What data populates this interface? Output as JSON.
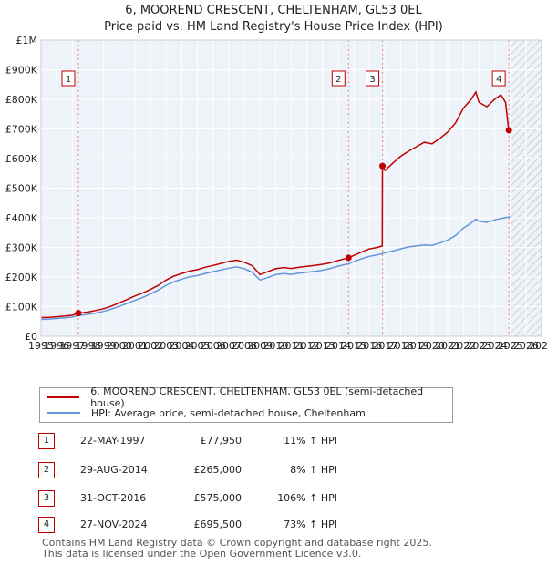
{
  "chart_data": {
    "type": "line",
    "title": "6, MOOREND CRESCENT, CHELTENHAM, GL53 0EL",
    "subtitle": "Price paid vs. HM Land Registry's House Price Index (HPI)",
    "xlim": [
      1995,
      2027
    ],
    "ylim": [
      0,
      1000000
    ],
    "x_ticks": [
      "1995",
      "1996",
      "1997",
      "1998",
      "1999",
      "2000",
      "2001",
      "2002",
      "2003",
      "2004",
      "2005",
      "2006",
      "2007",
      "2008",
      "2009",
      "2010",
      "2011",
      "2012",
      "2013",
      "2014",
      "2015",
      "2016",
      "2017",
      "2018",
      "2019",
      "2020",
      "2021",
      "2022",
      "2023",
      "2024",
      "2025",
      "2026",
      "2027"
    ],
    "y_ticks": [
      {
        "value": 0,
        "label": "£0"
      },
      {
        "value": 100000,
        "label": "£100K"
      },
      {
        "value": 200000,
        "label": "£200K"
      },
      {
        "value": 300000,
        "label": "£300K"
      },
      {
        "value": 400000,
        "label": "£400K"
      },
      {
        "value": 500000,
        "label": "£500K"
      },
      {
        "value": 600000,
        "label": "£600K"
      },
      {
        "value": 700000,
        "label": "£700K"
      },
      {
        "value": 800000,
        "label": "£800K"
      },
      {
        "value": 900000,
        "label": "£900K"
      },
      {
        "value": 1000000,
        "label": "£1M"
      }
    ],
    "grid": true,
    "hatch_from": 2025.0,
    "series": [
      {
        "name": "6, MOOREND CRESCENT, CHELTENHAM, GL53 0EL (semi-detached house)",
        "color": "#c00000",
        "points": [
          [
            1995.0,
            63000
          ],
          [
            1995.5,
            64000
          ],
          [
            1996.0,
            66000
          ],
          [
            1996.5,
            68000
          ],
          [
            1997.0,
            71000
          ],
          [
            1997.39,
            77950
          ],
          [
            1998.0,
            82000
          ],
          [
            1998.5,
            87000
          ],
          [
            1999.0,
            93000
          ],
          [
            1999.5,
            102000
          ],
          [
            2000.0,
            113000
          ],
          [
            2000.5,
            124000
          ],
          [
            2001.0,
            136000
          ],
          [
            2001.5,
            146000
          ],
          [
            2002.0,
            158000
          ],
          [
            2002.5,
            172000
          ],
          [
            2003.0,
            190000
          ],
          [
            2003.5,
            203000
          ],
          [
            2004.0,
            212000
          ],
          [
            2004.5,
            220000
          ],
          [
            2005.0,
            225000
          ],
          [
            2005.5,
            233000
          ],
          [
            2006.0,
            239000
          ],
          [
            2006.5,
            246000
          ],
          [
            2007.0,
            253000
          ],
          [
            2007.5,
            257000
          ],
          [
            2008.0,
            250000
          ],
          [
            2008.5,
            238000
          ],
          [
            2009.0,
            208000
          ],
          [
            2009.5,
            218000
          ],
          [
            2010.0,
            228000
          ],
          [
            2010.5,
            232000
          ],
          [
            2011.0,
            229000
          ],
          [
            2011.5,
            233000
          ],
          [
            2012.0,
            236000
          ],
          [
            2012.5,
            239000
          ],
          [
            2013.0,
            243000
          ],
          [
            2013.5,
            248000
          ],
          [
            2014.0,
            256000
          ],
          [
            2014.66,
            265000
          ],
          [
            2015.0,
            273000
          ],
          [
            2015.5,
            285000
          ],
          [
            2016.0,
            295000
          ],
          [
            2016.5,
            300000
          ],
          [
            2016.82,
            305000
          ],
          [
            2016.83,
            575000
          ],
          [
            2017.0,
            560000
          ],
          [
            2017.5,
            585000
          ],
          [
            2018.0,
            608000
          ],
          [
            2018.5,
            625000
          ],
          [
            2019.0,
            640000
          ],
          [
            2019.5,
            655000
          ],
          [
            2020.0,
            650000
          ],
          [
            2020.5,
            668000
          ],
          [
            2021.0,
            690000
          ],
          [
            2021.5,
            720000
          ],
          [
            2022.0,
            770000
          ],
          [
            2022.5,
            800000
          ],
          [
            2022.8,
            825000
          ],
          [
            2023.0,
            790000
          ],
          [
            2023.5,
            775000
          ],
          [
            2024.0,
            800000
          ],
          [
            2024.4,
            815000
          ],
          [
            2024.7,
            790000
          ],
          [
            2024.9,
            695500
          ]
        ]
      },
      {
        "name": "HPI: Average price, semi-detached house, Cheltenham",
        "color": "#6495d8",
        "points": [
          [
            1995.0,
            57000
          ],
          [
            1995.5,
            58000
          ],
          [
            1996.0,
            60000
          ],
          [
            1996.5,
            62000
          ],
          [
            1997.0,
            65000
          ],
          [
            1997.39,
            70000
          ],
          [
            1998.0,
            74000
          ],
          [
            1998.5,
            78000
          ],
          [
            1999.0,
            84000
          ],
          [
            1999.5,
            92000
          ],
          [
            2000.0,
            101000
          ],
          [
            2000.5,
            111000
          ],
          [
            2001.0,
            121000
          ],
          [
            2001.5,
            131000
          ],
          [
            2002.0,
            143000
          ],
          [
            2002.5,
            156000
          ],
          [
            2003.0,
            172000
          ],
          [
            2003.5,
            184000
          ],
          [
            2004.0,
            193000
          ],
          [
            2004.5,
            201000
          ],
          [
            2005.0,
            205000
          ],
          [
            2005.5,
            212000
          ],
          [
            2006.0,
            218000
          ],
          [
            2006.5,
            224000
          ],
          [
            2007.0,
            230000
          ],
          [
            2007.5,
            234000
          ],
          [
            2008.0,
            228000
          ],
          [
            2008.5,
            216000
          ],
          [
            2009.0,
            190000
          ],
          [
            2009.5,
            198000
          ],
          [
            2010.0,
            208000
          ],
          [
            2010.5,
            212000
          ],
          [
            2011.0,
            209000
          ],
          [
            2011.5,
            213000
          ],
          [
            2012.0,
            216000
          ],
          [
            2012.5,
            219000
          ],
          [
            2013.0,
            223000
          ],
          [
            2013.5,
            229000
          ],
          [
            2014.0,
            237000
          ],
          [
            2014.66,
            245000
          ],
          [
            2015.0,
            252000
          ],
          [
            2015.5,
            262000
          ],
          [
            2016.0,
            270000
          ],
          [
            2016.5,
            275000
          ],
          [
            2016.83,
            279000
          ],
          [
            2017.0,
            282000
          ],
          [
            2017.5,
            288000
          ],
          [
            2018.0,
            295000
          ],
          [
            2018.5,
            302000
          ],
          [
            2019.0,
            305000
          ],
          [
            2019.5,
            308000
          ],
          [
            2020.0,
            307000
          ],
          [
            2020.5,
            315000
          ],
          [
            2021.0,
            325000
          ],
          [
            2021.5,
            340000
          ],
          [
            2022.0,
            365000
          ],
          [
            2022.5,
            382000
          ],
          [
            2022.8,
            395000
          ],
          [
            2023.0,
            388000
          ],
          [
            2023.5,
            385000
          ],
          [
            2024.0,
            393000
          ],
          [
            2024.4,
            398000
          ],
          [
            2024.9,
            402000
          ],
          [
            2025.0,
            404000
          ]
        ]
      }
    ],
    "sales": [
      {
        "marker": "1",
        "x": 1997.39,
        "value": 77950
      },
      {
        "marker": "2",
        "x": 2014.66,
        "value": 265000
      },
      {
        "marker": "3",
        "x": 2016.83,
        "value": 575000
      },
      {
        "marker": "4",
        "x": 2024.91,
        "value": 695500
      }
    ]
  },
  "legend": {
    "property_label": "6, MOOREND CRESCENT, CHELTENHAM, GL53 0EL (semi-detached house)",
    "hpi_label": "HPI: Average price, semi-detached house, Cheltenham",
    "property_color": "#c00000",
    "hpi_color": "#6495d8"
  },
  "transactions": [
    {
      "marker": "1",
      "date": "22-MAY-1997",
      "price": "£77,950",
      "hpi": "11% ↑ HPI"
    },
    {
      "marker": "2",
      "date": "29-AUG-2014",
      "price": "£265,000",
      "hpi": "8% ↑ HPI"
    },
    {
      "marker": "3",
      "date": "31-OCT-2016",
      "price": "£575,000",
      "hpi": "106% ↑ HPI"
    },
    {
      "marker": "4",
      "date": "27-NOV-2024",
      "price": "£695,500",
      "hpi": "73% ↑ HPI"
    }
  ],
  "footer": {
    "line1": "Contains HM Land Registry data © Crown copyright and database right 2025.",
    "line2": "This data is licensed under the Open Government Licence v3.0."
  }
}
